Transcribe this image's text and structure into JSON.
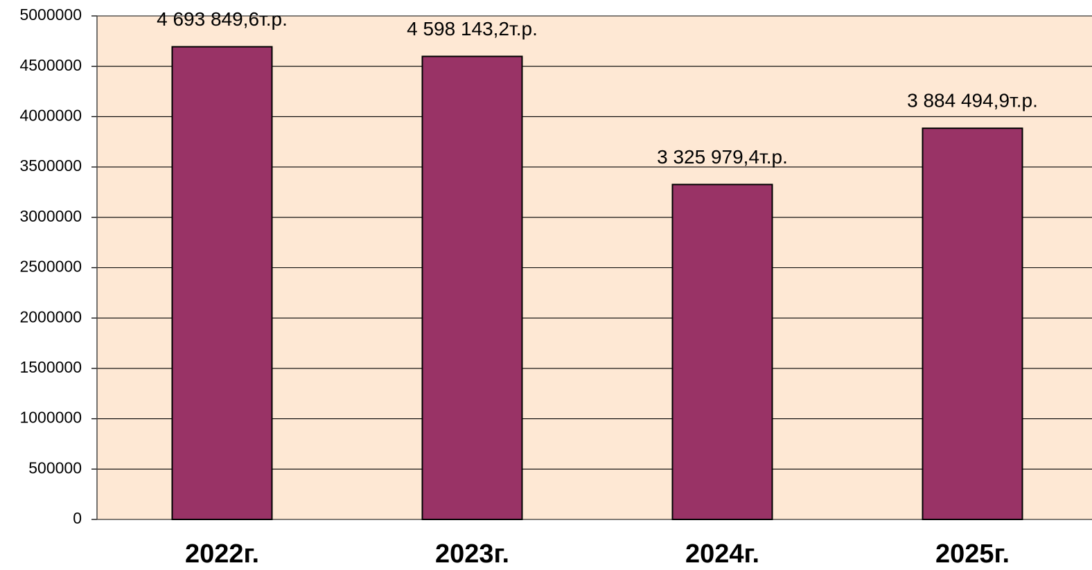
{
  "chart_data": {
    "type": "bar",
    "categories": [
      "2022г.",
      "2023г.",
      "2024г.",
      "2025г."
    ],
    "values": [
      4693849.6,
      4598143.2,
      3325979.4,
      3884494.9
    ],
    "value_labels": [
      "4 693 849,6т.р.",
      "4 598 143,2т.р.",
      "3 325 979,4т.р.",
      "3 884 494,9т.р."
    ],
    "color": "#993366",
    "ylim": [
      0,
      5000000
    ],
    "yticks": [
      0,
      500000,
      1000000,
      1500000,
      2000000,
      2500000,
      3000000,
      3500000,
      4000000,
      4500000,
      5000000
    ],
    "grid": true
  }
}
